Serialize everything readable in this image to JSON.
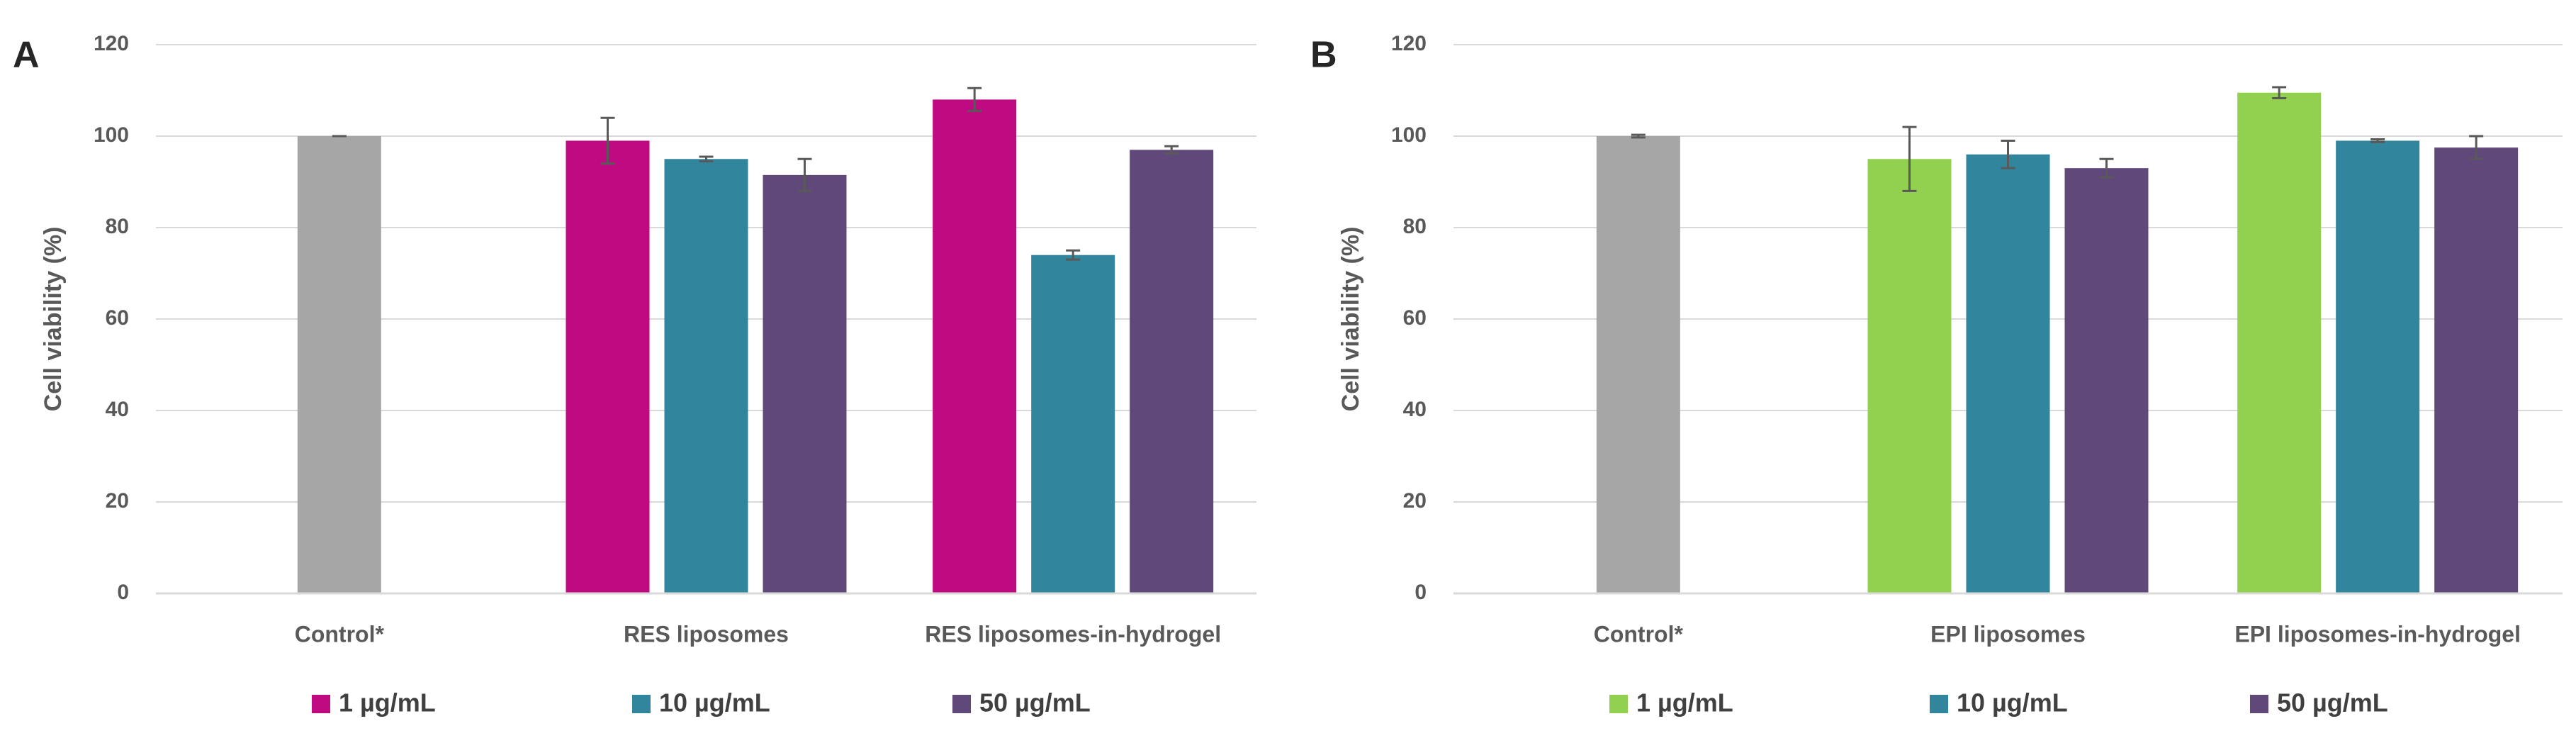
{
  "chart_data": [
    {
      "type": "bar",
      "panel": "A",
      "ylabel": "Cell viability (%)",
      "categories": [
        "Control*",
        "RES liposomes",
        "RES liposomes-in-hydrogel"
      ],
      "reference": {
        "color": "#a6a6a6",
        "values": [
          100,
          null,
          null
        ],
        "errors": [
          0,
          null,
          null
        ]
      },
      "series": [
        {
          "name": "1 µg/mL",
          "color": "#c00a82",
          "values": [
            null,
            99,
            108
          ],
          "errors": [
            null,
            5,
            2.5
          ]
        },
        {
          "name": "10 µg/mL",
          "color": "#31859c",
          "values": [
            null,
            95,
            74
          ],
          "errors": [
            null,
            0.5,
            1
          ]
        },
        {
          "name": "50 µg/mL",
          "color": "#60497a",
          "values": [
            null,
            91.5,
            97
          ],
          "errors": [
            null,
            3.5,
            0.8
          ]
        }
      ],
      "ylim": [
        0,
        120
      ],
      "yticks": [
        0,
        20,
        40,
        60,
        80,
        100,
        120
      ],
      "grid": true
    },
    {
      "type": "bar",
      "panel": "B",
      "ylabel": "Cell viability (%)",
      "categories": [
        "Control*",
        "EPI liposomes",
        "EPI liposomes-in-hydrogel"
      ],
      "reference": {
        "color": "#a6a6a6",
        "values": [
          100,
          null,
          null
        ],
        "errors": [
          0.3,
          null,
          null
        ]
      },
      "series": [
        {
          "name": "1 µg/mL",
          "color": "#92d050",
          "values": [
            null,
            95,
            109.5
          ],
          "errors": [
            null,
            7,
            1.2
          ]
        },
        {
          "name": "10 µg/mL",
          "color": "#31859c",
          "values": [
            null,
            96,
            99
          ],
          "errors": [
            null,
            3,
            0.3
          ]
        },
        {
          "name": "50 µg/mL",
          "color": "#60497a",
          "values": [
            null,
            93,
            97.5
          ],
          "errors": [
            null,
            2,
            2.5
          ]
        }
      ],
      "ylim": [
        0,
        120
      ],
      "yticks": [
        0,
        20,
        40,
        60,
        80,
        100,
        120
      ],
      "grid": true
    }
  ]
}
